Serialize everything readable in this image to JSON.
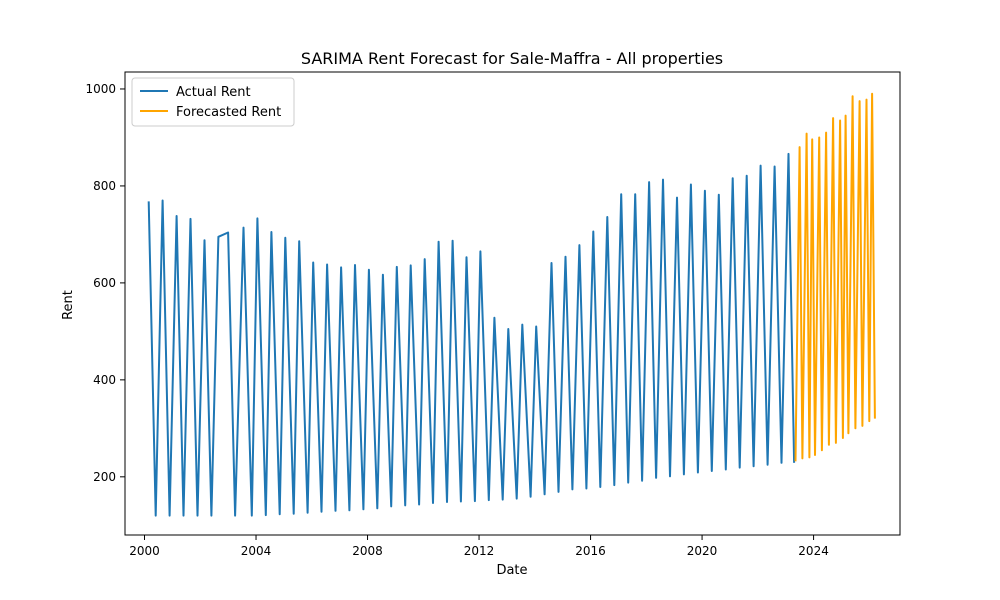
{
  "chart_data": {
    "type": "line",
    "title": "SARIMA Rent Forecast for Sale-Maffra - All properties",
    "xlabel": "Date",
    "ylabel": "Rent",
    "xlim": [
      1999.3,
      2027.1
    ],
    "ylim": [
      80,
      1035
    ],
    "xticks": [
      2000,
      2004,
      2008,
      2012,
      2016,
      2020,
      2024
    ],
    "yticks": [
      200,
      400,
      600,
      800,
      1000
    ],
    "grid": false,
    "legend_position": "top-left",
    "series": [
      {
        "name": "Actual Rent",
        "color": "#1f77b4",
        "x": [
          2000.15,
          2000.4,
          2000.65,
          2000.9,
          2001.15,
          2001.4,
          2001.65,
          2001.9,
          2002.15,
          2002.4,
          2002.65,
          2003.0,
          2003.25,
          2003.55,
          2003.85,
          2004.05,
          2004.35,
          2004.55,
          2004.85,
          2005.05,
          2005.35,
          2005.55,
          2005.85,
          2006.05,
          2006.35,
          2006.55,
          2006.85,
          2007.05,
          2007.35,
          2007.55,
          2007.85,
          2008.05,
          2008.35,
          2008.55,
          2008.85,
          2009.05,
          2009.35,
          2009.55,
          2009.85,
          2010.05,
          2010.35,
          2010.55,
          2010.85,
          2011.05,
          2011.35,
          2011.55,
          2011.85,
          2012.05,
          2012.35,
          2012.55,
          2012.85,
          2013.05,
          2013.35,
          2013.55,
          2013.85,
          2014.05,
          2014.35,
          2014.6,
          2014.85,
          2015.1,
          2015.35,
          2015.6,
          2015.85,
          2016.1,
          2016.35,
          2016.6,
          2016.85,
          2017.1,
          2017.35,
          2017.6,
          2017.85,
          2018.1,
          2018.35,
          2018.6,
          2018.85,
          2019.1,
          2019.35,
          2019.6,
          2019.85,
          2020.1,
          2020.35,
          2020.6,
          2020.85,
          2021.1,
          2021.35,
          2021.6,
          2021.85,
          2022.1,
          2022.35,
          2022.6,
          2022.85,
          2023.1,
          2023.3
        ],
        "y": [
          768,
          120,
          770,
          120,
          738,
          120,
          732,
          120,
          688,
          120,
          695,
          704,
          120,
          714,
          120,
          733,
          121,
          705,
          123,
          693,
          124,
          686,
          126,
          642,
          128,
          638,
          130,
          632,
          131,
          637,
          133,
          627,
          135,
          617,
          139,
          633,
          141,
          636,
          143,
          649,
          146,
          685,
          148,
          687,
          149,
          653,
          150,
          665,
          152,
          528,
          153,
          505,
          155,
          514,
          159,
          510,
          164,
          641,
          169,
          654,
          174,
          678,
          176,
          706,
          179,
          736,
          183,
          783,
          188,
          783,
          192,
          808,
          198,
          813,
          201,
          776,
          205,
          803,
          209,
          790,
          212,
          782,
          215,
          816,
          219,
          821,
          222,
          842,
          225,
          840,
          229,
          866,
          229
        ]
      },
      {
        "name": "Forecasted Rent",
        "color": "#ffa500",
        "x": [
          2023.35,
          2023.5,
          2023.6,
          2023.75,
          2023.85,
          2023.95,
          2024.05,
          2024.2,
          2024.3,
          2024.45,
          2024.55,
          2024.7,
          2024.8,
          2024.95,
          2025.05,
          2025.15,
          2025.25,
          2025.4,
          2025.5,
          2025.65,
          2025.75,
          2025.9,
          2026.0,
          2026.1,
          2026.2
        ],
        "y": [
          232,
          880,
          238,
          908,
          240,
          896,
          245,
          900,
          255,
          910,
          266,
          940,
          270,
          935,
          280,
          945,
          290,
          985,
          300,
          975,
          305,
          978,
          315,
          990,
          320
        ]
      }
    ]
  }
}
